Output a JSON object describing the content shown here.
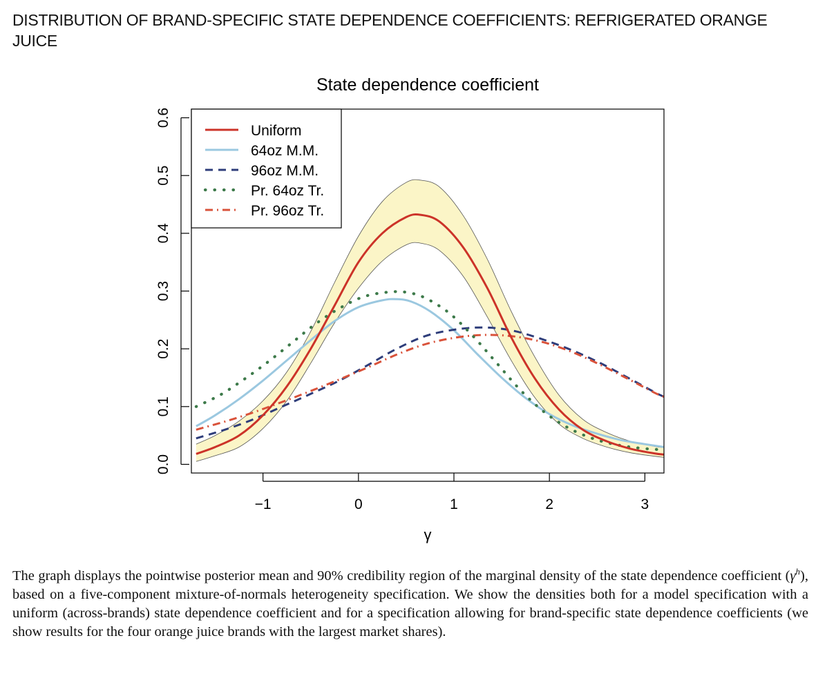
{
  "heading": "DISTRIBUTION OF BRAND-SPECIFIC STATE DEPENDENCE COEFFICIENTS: REFRIGERATED ORANGE JUICE",
  "caption": {
    "before": "The graph displays the pointwise posterior mean and 90% credibility region of the marginal density of the state dependence coefficient (",
    "symbol": "γ",
    "superscript": "h",
    "after": "), based on a five-component mixture-of-normals heterogeneity specification. We show the densities both for a model specification with a uniform (across-brands) state dependence coefficient and for a specification allowing for brand-specific state dependence coefficients (we show results for the four orange juice brands with the largest market shares)."
  },
  "chart_data": {
    "type": "line",
    "title": "State dependence coefficient",
    "xlabel": "γ",
    "ylabel": "",
    "xlim": [
      -1.75,
      3.2
    ],
    "ylim": [
      -0.015,
      0.615
    ],
    "x_ticks": [
      -1,
      0,
      1,
      2,
      3
    ],
    "x_tick_labels": [
      "−1",
      "0",
      "1",
      "2",
      "3"
    ],
    "y_ticks": [
      0.0,
      0.1,
      0.2,
      0.3,
      0.4,
      0.5,
      0.6
    ],
    "y_tick_labels": [
      "0.0",
      "0.1",
      "0.2",
      "0.3",
      "0.4",
      "0.5",
      "0.6"
    ],
    "legend_position": "top-left",
    "band": {
      "name": "90% credibility region",
      "color": "#fbf5c7",
      "x": [
        -1.7,
        -1.5,
        -1.25,
        -1.0,
        -0.75,
        -0.5,
        -0.25,
        0.0,
        0.25,
        0.5,
        0.65,
        0.85,
        1.1,
        1.35,
        1.6,
        1.85,
        2.1,
        2.35,
        2.6,
        2.85,
        3.1,
        3.2
      ],
      "upper": [
        0.035,
        0.05,
        0.075,
        0.11,
        0.16,
        0.23,
        0.315,
        0.395,
        0.455,
        0.488,
        0.492,
        0.48,
        0.43,
        0.355,
        0.265,
        0.185,
        0.12,
        0.078,
        0.055,
        0.04,
        0.031,
        0.029
      ],
      "lower": [
        0.005,
        0.015,
        0.03,
        0.062,
        0.11,
        0.175,
        0.245,
        0.305,
        0.352,
        0.38,
        0.383,
        0.37,
        0.325,
        0.255,
        0.18,
        0.115,
        0.07,
        0.045,
        0.03,
        0.02,
        0.014,
        0.012
      ]
    },
    "series": [
      {
        "name": "Uniform",
        "color": "#cc3329",
        "style": "solid",
        "x": [
          -1.7,
          -1.5,
          -1.25,
          -1.0,
          -0.75,
          -0.5,
          -0.25,
          0.0,
          0.25,
          0.5,
          0.65,
          0.85,
          1.1,
          1.35,
          1.6,
          1.85,
          2.1,
          2.35,
          2.6,
          2.85,
          3.1,
          3.2
        ],
        "values": [
          0.018,
          0.03,
          0.05,
          0.085,
          0.135,
          0.2,
          0.275,
          0.35,
          0.4,
          0.428,
          0.432,
          0.42,
          0.375,
          0.305,
          0.22,
          0.148,
          0.095,
          0.06,
          0.04,
          0.027,
          0.019,
          0.017
        ]
      },
      {
        "name": "64oz M.M.",
        "color": "#9bc8e0",
        "style": "solid",
        "x": [
          -1.7,
          -1.5,
          -1.25,
          -1.0,
          -0.75,
          -0.5,
          -0.25,
          0.0,
          0.25,
          0.4,
          0.55,
          0.75,
          1.0,
          1.25,
          1.5,
          1.75,
          2.0,
          2.25,
          2.5,
          2.75,
          3.0,
          3.2
        ],
        "values": [
          0.066,
          0.085,
          0.113,
          0.145,
          0.18,
          0.215,
          0.248,
          0.272,
          0.284,
          0.286,
          0.282,
          0.265,
          0.232,
          0.19,
          0.15,
          0.115,
          0.087,
          0.067,
          0.053,
          0.042,
          0.035,
          0.03
        ]
      },
      {
        "name": "96oz M.M.",
        "color": "#2e3d7a",
        "style": "dashed",
        "x": [
          -1.7,
          -1.4,
          -1.1,
          -0.8,
          -0.5,
          -0.2,
          0.1,
          0.4,
          0.7,
          1.0,
          1.3,
          1.6,
          1.9,
          2.2,
          2.5,
          2.8,
          3.1,
          3.2
        ],
        "values": [
          0.045,
          0.06,
          0.078,
          0.1,
          0.122,
          0.145,
          0.172,
          0.2,
          0.222,
          0.233,
          0.237,
          0.232,
          0.218,
          0.2,
          0.178,
          0.152,
          0.125,
          0.117
        ]
      },
      {
        "name": "Pr. 64oz Tr.",
        "color": "#3d7a4a",
        "style": "dotted",
        "x": [
          -1.7,
          -1.45,
          -1.2,
          -0.95,
          -0.7,
          -0.45,
          -0.2,
          0.05,
          0.3,
          0.5,
          0.7,
          0.95,
          1.2,
          1.45,
          1.7,
          1.95,
          2.2,
          2.45,
          2.7,
          2.95,
          3.2
        ],
        "values": [
          0.1,
          0.12,
          0.147,
          0.177,
          0.21,
          0.243,
          0.27,
          0.29,
          0.298,
          0.298,
          0.288,
          0.262,
          0.222,
          0.175,
          0.128,
          0.09,
          0.063,
          0.045,
          0.034,
          0.028,
          0.025
        ]
      },
      {
        "name": "Pr. 96oz Tr.",
        "color": "#d9523a",
        "style": "dashdot",
        "x": [
          -1.7,
          -1.4,
          -1.1,
          -0.8,
          -0.5,
          -0.2,
          0.1,
          0.4,
          0.7,
          1.0,
          1.3,
          1.6,
          1.9,
          2.2,
          2.5,
          2.8,
          3.1,
          3.2
        ],
        "values": [
          0.06,
          0.074,
          0.09,
          0.108,
          0.127,
          0.147,
          0.168,
          0.19,
          0.208,
          0.219,
          0.224,
          0.222,
          0.213,
          0.197,
          0.175,
          0.15,
          0.124,
          0.117
        ]
      }
    ]
  }
}
